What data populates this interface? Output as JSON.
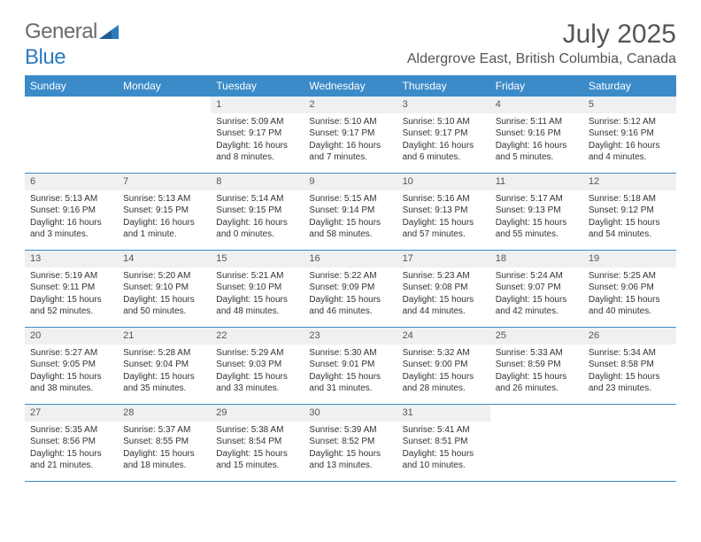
{
  "brand": {
    "name_a": "General",
    "name_b": "Blue"
  },
  "title": {
    "month": "July 2025",
    "location": "Aldergrove East, British Columbia, Canada"
  },
  "colors": {
    "header_bg": "#3b8bc9",
    "header_text": "#ffffff",
    "daynum_bg": "#eef0f2",
    "border": "#3b8bc9",
    "body_text": "#333333",
    "title_text": "#555555",
    "logo_gray": "#6b6b6b",
    "logo_blue": "#2b7bbf"
  },
  "day_labels": [
    "Sunday",
    "Monday",
    "Tuesday",
    "Wednesday",
    "Thursday",
    "Friday",
    "Saturday"
  ],
  "weeks": [
    [
      null,
      null,
      {
        "n": "1",
        "sr": "Sunrise: 5:09 AM",
        "ss": "Sunset: 9:17 PM",
        "dl1": "Daylight: 16 hours",
        "dl2": "and 8 minutes."
      },
      {
        "n": "2",
        "sr": "Sunrise: 5:10 AM",
        "ss": "Sunset: 9:17 PM",
        "dl1": "Daylight: 16 hours",
        "dl2": "and 7 minutes."
      },
      {
        "n": "3",
        "sr": "Sunrise: 5:10 AM",
        "ss": "Sunset: 9:17 PM",
        "dl1": "Daylight: 16 hours",
        "dl2": "and 6 minutes."
      },
      {
        "n": "4",
        "sr": "Sunrise: 5:11 AM",
        "ss": "Sunset: 9:16 PM",
        "dl1": "Daylight: 16 hours",
        "dl2": "and 5 minutes."
      },
      {
        "n": "5",
        "sr": "Sunrise: 5:12 AM",
        "ss": "Sunset: 9:16 PM",
        "dl1": "Daylight: 16 hours",
        "dl2": "and 4 minutes."
      }
    ],
    [
      {
        "n": "6",
        "sr": "Sunrise: 5:13 AM",
        "ss": "Sunset: 9:16 PM",
        "dl1": "Daylight: 16 hours",
        "dl2": "and 3 minutes."
      },
      {
        "n": "7",
        "sr": "Sunrise: 5:13 AM",
        "ss": "Sunset: 9:15 PM",
        "dl1": "Daylight: 16 hours",
        "dl2": "and 1 minute."
      },
      {
        "n": "8",
        "sr": "Sunrise: 5:14 AM",
        "ss": "Sunset: 9:15 PM",
        "dl1": "Daylight: 16 hours",
        "dl2": "and 0 minutes."
      },
      {
        "n": "9",
        "sr": "Sunrise: 5:15 AM",
        "ss": "Sunset: 9:14 PM",
        "dl1": "Daylight: 15 hours",
        "dl2": "and 58 minutes."
      },
      {
        "n": "10",
        "sr": "Sunrise: 5:16 AM",
        "ss": "Sunset: 9:13 PM",
        "dl1": "Daylight: 15 hours",
        "dl2": "and 57 minutes."
      },
      {
        "n": "11",
        "sr": "Sunrise: 5:17 AM",
        "ss": "Sunset: 9:13 PM",
        "dl1": "Daylight: 15 hours",
        "dl2": "and 55 minutes."
      },
      {
        "n": "12",
        "sr": "Sunrise: 5:18 AM",
        "ss": "Sunset: 9:12 PM",
        "dl1": "Daylight: 15 hours",
        "dl2": "and 54 minutes."
      }
    ],
    [
      {
        "n": "13",
        "sr": "Sunrise: 5:19 AM",
        "ss": "Sunset: 9:11 PM",
        "dl1": "Daylight: 15 hours",
        "dl2": "and 52 minutes."
      },
      {
        "n": "14",
        "sr": "Sunrise: 5:20 AM",
        "ss": "Sunset: 9:10 PM",
        "dl1": "Daylight: 15 hours",
        "dl2": "and 50 minutes."
      },
      {
        "n": "15",
        "sr": "Sunrise: 5:21 AM",
        "ss": "Sunset: 9:10 PM",
        "dl1": "Daylight: 15 hours",
        "dl2": "and 48 minutes."
      },
      {
        "n": "16",
        "sr": "Sunrise: 5:22 AM",
        "ss": "Sunset: 9:09 PM",
        "dl1": "Daylight: 15 hours",
        "dl2": "and 46 minutes."
      },
      {
        "n": "17",
        "sr": "Sunrise: 5:23 AM",
        "ss": "Sunset: 9:08 PM",
        "dl1": "Daylight: 15 hours",
        "dl2": "and 44 minutes."
      },
      {
        "n": "18",
        "sr": "Sunrise: 5:24 AM",
        "ss": "Sunset: 9:07 PM",
        "dl1": "Daylight: 15 hours",
        "dl2": "and 42 minutes."
      },
      {
        "n": "19",
        "sr": "Sunrise: 5:25 AM",
        "ss": "Sunset: 9:06 PM",
        "dl1": "Daylight: 15 hours",
        "dl2": "and 40 minutes."
      }
    ],
    [
      {
        "n": "20",
        "sr": "Sunrise: 5:27 AM",
        "ss": "Sunset: 9:05 PM",
        "dl1": "Daylight: 15 hours",
        "dl2": "and 38 minutes."
      },
      {
        "n": "21",
        "sr": "Sunrise: 5:28 AM",
        "ss": "Sunset: 9:04 PM",
        "dl1": "Daylight: 15 hours",
        "dl2": "and 35 minutes."
      },
      {
        "n": "22",
        "sr": "Sunrise: 5:29 AM",
        "ss": "Sunset: 9:03 PM",
        "dl1": "Daylight: 15 hours",
        "dl2": "and 33 minutes."
      },
      {
        "n": "23",
        "sr": "Sunrise: 5:30 AM",
        "ss": "Sunset: 9:01 PM",
        "dl1": "Daylight: 15 hours",
        "dl2": "and 31 minutes."
      },
      {
        "n": "24",
        "sr": "Sunrise: 5:32 AM",
        "ss": "Sunset: 9:00 PM",
        "dl1": "Daylight: 15 hours",
        "dl2": "and 28 minutes."
      },
      {
        "n": "25",
        "sr": "Sunrise: 5:33 AM",
        "ss": "Sunset: 8:59 PM",
        "dl1": "Daylight: 15 hours",
        "dl2": "and 26 minutes."
      },
      {
        "n": "26",
        "sr": "Sunrise: 5:34 AM",
        "ss": "Sunset: 8:58 PM",
        "dl1": "Daylight: 15 hours",
        "dl2": "and 23 minutes."
      }
    ],
    [
      {
        "n": "27",
        "sr": "Sunrise: 5:35 AM",
        "ss": "Sunset: 8:56 PM",
        "dl1": "Daylight: 15 hours",
        "dl2": "and 21 minutes."
      },
      {
        "n": "28",
        "sr": "Sunrise: 5:37 AM",
        "ss": "Sunset: 8:55 PM",
        "dl1": "Daylight: 15 hours",
        "dl2": "and 18 minutes."
      },
      {
        "n": "29",
        "sr": "Sunrise: 5:38 AM",
        "ss": "Sunset: 8:54 PM",
        "dl1": "Daylight: 15 hours",
        "dl2": "and 15 minutes."
      },
      {
        "n": "30",
        "sr": "Sunrise: 5:39 AM",
        "ss": "Sunset: 8:52 PM",
        "dl1": "Daylight: 15 hours",
        "dl2": "and 13 minutes."
      },
      {
        "n": "31",
        "sr": "Sunrise: 5:41 AM",
        "ss": "Sunset: 8:51 PM",
        "dl1": "Daylight: 15 hours",
        "dl2": "and 10 minutes."
      },
      null,
      null
    ]
  ]
}
